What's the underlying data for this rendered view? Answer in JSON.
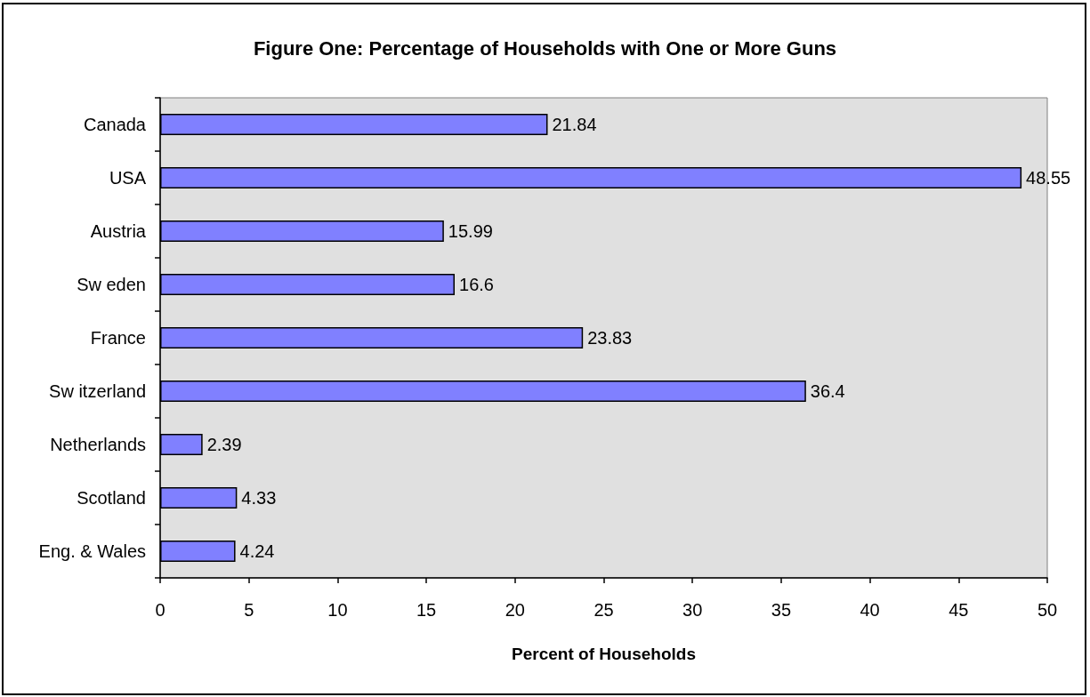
{
  "chart_data": {
    "type": "bar",
    "orientation": "horizontal",
    "title": "Figure One: Percentage of Households with One or More Guns",
    "xlabel": "Percent of Households",
    "categories": [
      "Canada",
      "USA",
      "Austria",
      "Sw eden",
      "France",
      "Sw itzerland",
      "Netherlands",
      "Scotland",
      "Eng. & Wales"
    ],
    "values": [
      21.84,
      48.55,
      15.99,
      16.6,
      23.83,
      36.4,
      2.39,
      4.33,
      4.24
    ],
    "color": "#8080ff",
    "xlim": [
      0,
      50
    ],
    "xticks": [
      0,
      5,
      10,
      15,
      20,
      25,
      30,
      35,
      40,
      45,
      50
    ],
    "data_labels": true,
    "grid": false
  }
}
